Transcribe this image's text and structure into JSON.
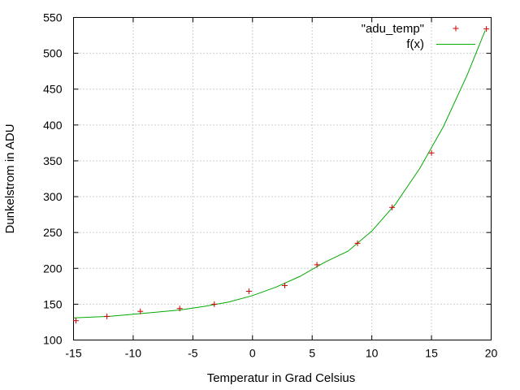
{
  "chart_data": {
    "type": "scatter",
    "xlabel": "Temperatur in Grad Celsius",
    "ylabel": "Dunkelstrom in ADU",
    "xlim": [
      -15,
      20
    ],
    "ylim": [
      100,
      550
    ],
    "xticks": [
      -15,
      -10,
      -5,
      0,
      5,
      10,
      15,
      20
    ],
    "yticks": [
      100,
      150,
      200,
      250,
      300,
      350,
      400,
      450,
      500,
      550
    ],
    "grid": true,
    "legend_position": "top-right",
    "series": [
      {
        "name": "\"adu_temp\"",
        "kind": "points",
        "marker": "plus",
        "color": "#cc0000",
        "x": [
          -14.8,
          -12.2,
          -9.4,
          -6.1,
          -3.2,
          -0.3,
          2.7,
          5.4,
          8.8,
          11.7,
          15.0,
          19.6
        ],
        "y": [
          127,
          133,
          140,
          144,
          150,
          168,
          176,
          205,
          235,
          285,
          361,
          534
        ]
      },
      {
        "name": "f(x)",
        "kind": "line",
        "color": "#00aa00",
        "x": [
          -15,
          -12,
          -10,
          -8,
          -6,
          -4,
          -2,
          0,
          2,
          4,
          6,
          8,
          10,
          12,
          14,
          16,
          18,
          19.5
        ],
        "y": [
          131,
          133,
          136,
          139,
          142,
          147,
          153,
          162,
          174,
          189,
          208,
          224,
          252,
          290,
          339,
          398,
          470,
          532
        ]
      }
    ]
  }
}
